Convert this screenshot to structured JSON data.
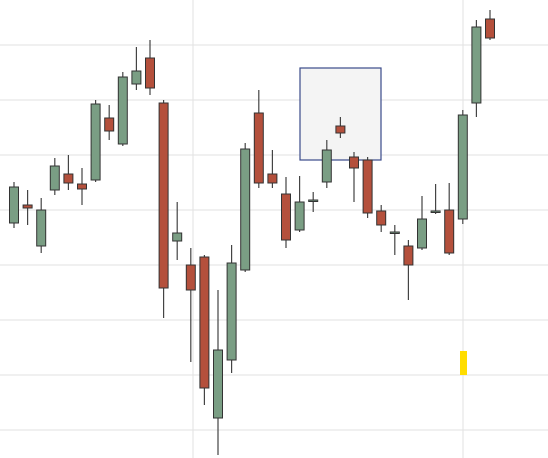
{
  "chart_data": {
    "type": "candlestick",
    "categories": [
      null,
      null,
      null,
      null,
      null,
      null,
      null,
      null,
      null,
      null,
      null,
      null,
      null,
      null,
      null,
      null,
      null,
      null,
      null,
      null,
      null,
      null,
      null,
      null,
      null,
      null,
      null,
      null,
      null,
      null,
      null,
      null,
      null,
      null,
      null,
      null
    ],
    "open": [
      235,
      253,
      212,
      268,
      284,
      274,
      278,
      340,
      314,
      374,
      400,
      355,
      217,
      193,
      201,
      40,
      98,
      188,
      345,
      284,
      264,
      228,
      257,
      276,
      332,
      301,
      298,
      247,
      226,
      212,
      210,
      247,
      248,
      239,
      355,
      439
    ],
    "high": [
      276,
      268,
      260,
      300,
      303,
      290,
      358,
      353,
      386,
      411,
      418,
      358,
      256,
      210,
      203,
      168,
      213,
      315,
      368,
      308,
      281,
      282,
      266,
      318,
      341,
      306,
      301,
      253,
      233,
      218,
      262,
      274,
      275,
      348,
      438,
      448
    ],
    "low": [
      230,
      233,
      205,
      263,
      268,
      253,
      276,
      318,
      312,
      368,
      363,
      140,
      198,
      96,
      53,
      3,
      85,
      186,
      270,
      270,
      210,
      226,
      246,
      270,
      320,
      256,
      240,
      226,
      203,
      158,
      208,
      244,
      203,
      234,
      341,
      418
    ],
    "close": [
      271,
      250,
      248,
      292,
      275,
      269,
      354,
      327,
      381,
      387,
      370,
      170,
      225,
      168,
      70,
      108,
      195,
      309,
      275,
      275,
      218,
      256,
      258,
      308,
      325,
      290,
      245,
      233,
      226,
      193,
      239,
      247,
      205,
      343,
      431,
      420
    ],
    "up_color": "#7a9e84",
    "down_color": "#b4503c",
    "ylim": [
      0,
      458
    ],
    "yticks": [
      28,
      83,
      138,
      193,
      248,
      303,
      358,
      413
    ],
    "grid": true
  }
}
